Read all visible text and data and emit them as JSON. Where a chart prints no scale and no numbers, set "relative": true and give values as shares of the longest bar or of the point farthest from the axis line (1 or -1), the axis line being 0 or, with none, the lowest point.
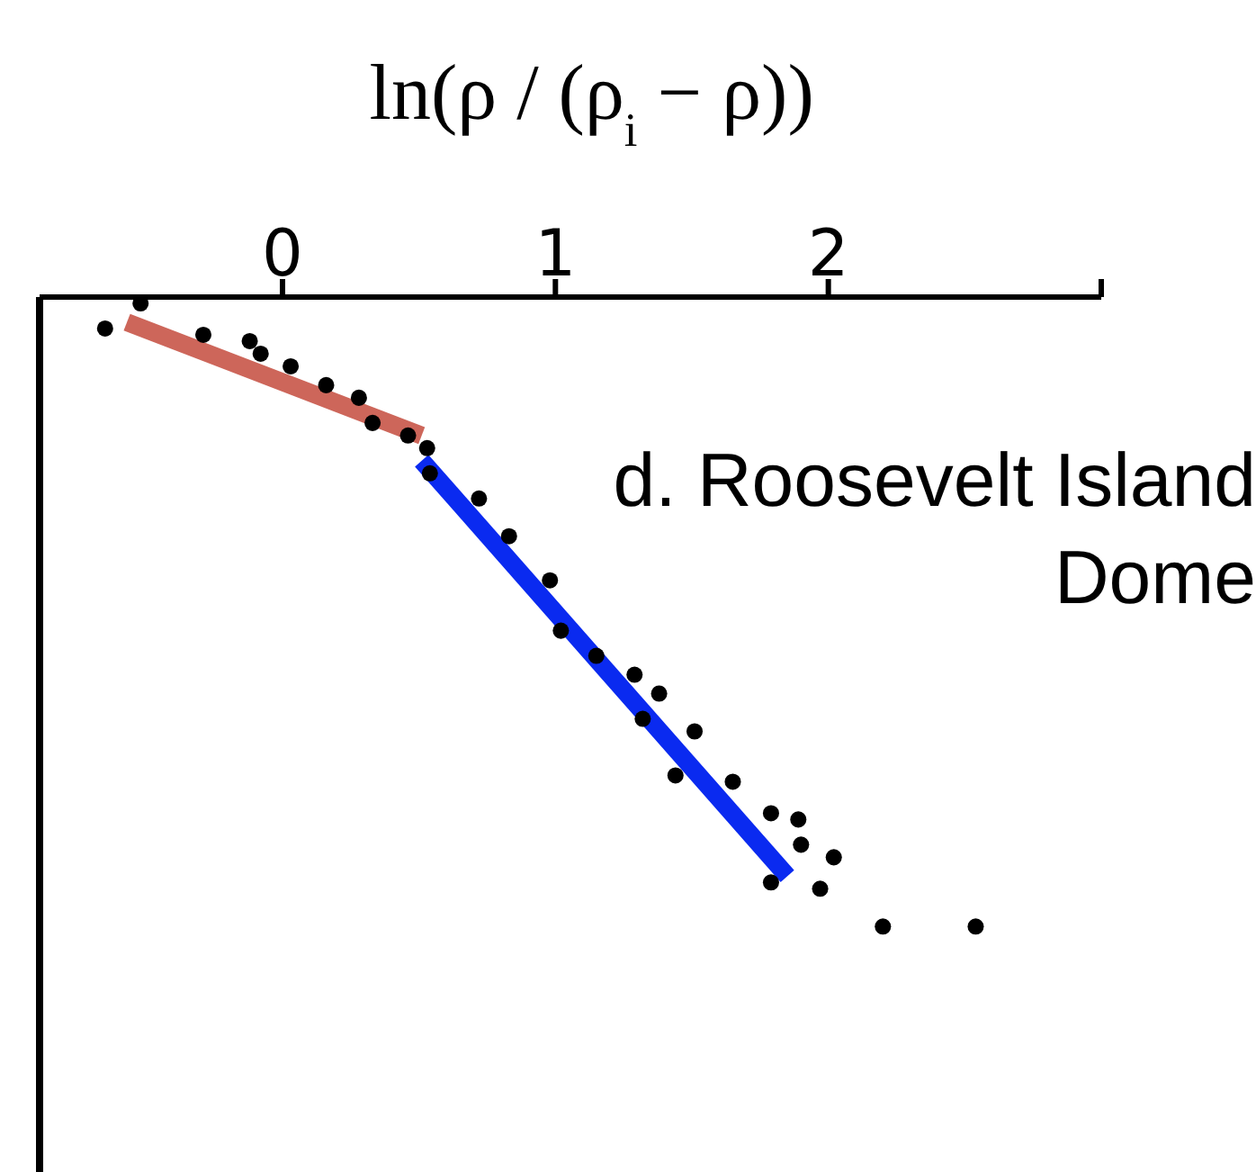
{
  "chart_data": {
    "type": "scatter",
    "xlabel": "ln(ρ / (ρ$_{i}$ − ρ))",
    "relative": true,
    "tick_labels": "x",
    "grid": false,
    "legend": false,
    "xlim": [
      -0.89,
      3
    ],
    "xticks": [
      0,
      1,
      2,
      {
        "value": 3,
        "label": null
      }
    ],
    "annotations": [
      "d. Roosevelt Island Dome"
    ],
    "series": [
      {
        "marker": "circle",
        "color": "#000000",
        "x": [
          -0.65,
          -0.52,
          -0.29,
          -0.12,
          -0.08,
          0.03,
          0.16,
          0.28,
          0.33,
          0.46,
          0.53,
          0.54,
          0.72,
          0.83,
          0.98,
          1.02,
          1.15,
          1.29,
          1.38,
          1.32,
          1.51,
          1.44,
          1.65,
          1.79,
          1.89,
          1.9,
          2.02,
          1.79,
          1.97,
          2.2,
          2.54
        ],
        "values": [
          -0.05,
          -0.01,
          -0.06,
          -0.07,
          -0.09,
          -0.11,
          -0.14,
          -0.16,
          -0.2,
          -0.22,
          -0.24,
          -0.28,
          -0.32,
          -0.38,
          -0.45,
          -0.53,
          -0.57,
          -0.6,
          -0.63,
          -0.67,
          -0.69,
          -0.76,
          -0.77,
          -0.82,
          -0.83,
          -0.87,
          -0.89,
          -0.93,
          -0.94,
          -1,
          -1
        ]
      },
      {
        "type": "line",
        "marker": "none",
        "color": "#cd665a",
        "line_style": "solid",
        "x": [
          -0.57,
          0.51
        ],
        "values": [
          -0.04,
          -0.22
        ]
      },
      {
        "type": "line",
        "marker": "none",
        "color": "#0a2af0",
        "line_style": "solid",
        "x": [
          0.51,
          1.85
        ],
        "values": [
          -0.26,
          -0.92
        ]
      }
    ]
  }
}
